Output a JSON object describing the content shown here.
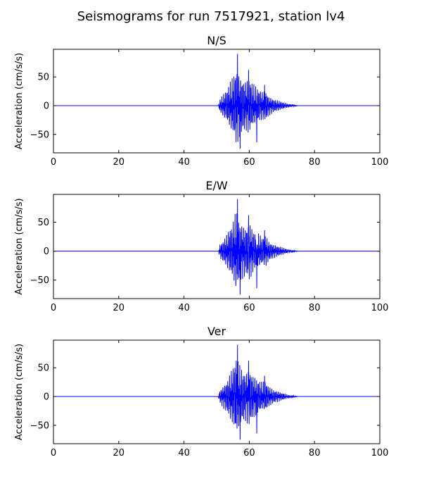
{
  "title": "Seismograms for run 7517921, station lv4",
  "chart_data": [
    {
      "type": "line",
      "title": "N/S",
      "xlabel": "",
      "ylabel": "Acceleration (cm/s/s)",
      "xlim": [
        0,
        100
      ],
      "ylim": [
        -82,
        98
      ],
      "xticks": [
        0,
        20,
        40,
        60,
        80,
        100
      ],
      "yticks": [
        -50,
        0,
        50
      ],
      "grid": false,
      "color": "#0000ff",
      "envelope": [
        [
          0,
          0
        ],
        [
          50.5,
          0
        ],
        [
          51,
          12
        ],
        [
          52,
          20
        ],
        [
          53,
          28
        ],
        [
          54,
          40
        ],
        [
          55,
          52
        ],
        [
          56,
          72
        ],
        [
          57,
          56
        ],
        [
          58,
          48
        ],
        [
          59,
          44
        ],
        [
          60,
          52
        ],
        [
          61,
          40
        ],
        [
          62,
          34
        ],
        [
          63,
          30
        ],
        [
          64,
          25
        ],
        [
          65,
          28
        ],
        [
          66,
          18
        ],
        [
          67,
          14
        ],
        [
          68,
          11
        ],
        [
          69,
          9
        ],
        [
          70,
          7
        ],
        [
          71,
          5
        ],
        [
          72,
          3
        ],
        [
          73,
          2
        ],
        [
          74,
          1
        ],
        [
          75,
          0
        ],
        [
          100,
          0
        ]
      ],
      "peaks": [
        [
          56.4,
          90
        ],
        [
          57.2,
          -75
        ],
        [
          59.8,
          62
        ],
        [
          62.3,
          -64
        ],
        [
          64.7,
          36
        ]
      ]
    },
    {
      "type": "line",
      "title": "E/W",
      "xlabel": "",
      "ylabel": "Acceleration (cm/s/s)",
      "xlim": [
        0,
        100
      ],
      "ylim": [
        -82,
        98
      ],
      "xticks": [
        0,
        20,
        40,
        60,
        80,
        100
      ],
      "yticks": [
        -50,
        0,
        50
      ],
      "grid": false,
      "color": "#0000ff",
      "envelope": [
        [
          0,
          0
        ],
        [
          50.5,
          0
        ],
        [
          51,
          12
        ],
        [
          52,
          20
        ],
        [
          53,
          28
        ],
        [
          54,
          40
        ],
        [
          55,
          52
        ],
        [
          56,
          72
        ],
        [
          57,
          56
        ],
        [
          58,
          48
        ],
        [
          59,
          44
        ],
        [
          60,
          52
        ],
        [
          61,
          40
        ],
        [
          62,
          34
        ],
        [
          63,
          30
        ],
        [
          64,
          25
        ],
        [
          65,
          28
        ],
        [
          66,
          18
        ],
        [
          67,
          14
        ],
        [
          68,
          11
        ],
        [
          69,
          9
        ],
        [
          70,
          7
        ],
        [
          71,
          5
        ],
        [
          72,
          3
        ],
        [
          73,
          2
        ],
        [
          74,
          1
        ],
        [
          75,
          0
        ],
        [
          100,
          0
        ]
      ],
      "peaks": [
        [
          56.4,
          90
        ],
        [
          57.2,
          -75
        ],
        [
          59.8,
          62
        ],
        [
          62.3,
          -64
        ],
        [
          64.7,
          36
        ]
      ]
    },
    {
      "type": "line",
      "title": "Ver",
      "xlabel": "",
      "ylabel": "Acceleration (cm/s/s)",
      "xlim": [
        0,
        100
      ],
      "ylim": [
        -82,
        98
      ],
      "xticks": [
        0,
        20,
        40,
        60,
        80,
        100
      ],
      "yticks": [
        -50,
        0,
        50
      ],
      "grid": false,
      "color": "#0000ff",
      "envelope": [
        [
          0,
          0
        ],
        [
          50.5,
          0
        ],
        [
          51,
          12
        ],
        [
          52,
          20
        ],
        [
          53,
          28
        ],
        [
          54,
          40
        ],
        [
          55,
          52
        ],
        [
          56,
          72
        ],
        [
          57,
          56
        ],
        [
          58,
          48
        ],
        [
          59,
          44
        ],
        [
          60,
          52
        ],
        [
          61,
          40
        ],
        [
          62,
          34
        ],
        [
          63,
          30
        ],
        [
          64,
          25
        ],
        [
          65,
          28
        ],
        [
          66,
          18
        ],
        [
          67,
          14
        ],
        [
          68,
          11
        ],
        [
          69,
          9
        ],
        [
          70,
          7
        ],
        [
          71,
          5
        ],
        [
          72,
          3
        ],
        [
          73,
          2
        ],
        [
          74,
          1
        ],
        [
          75,
          0
        ],
        [
          100,
          0
        ]
      ],
      "peaks": [
        [
          56.4,
          90
        ],
        [
          57.2,
          -75
        ],
        [
          59.8,
          62
        ],
        [
          62.3,
          -64
        ],
        [
          64.7,
          36
        ]
      ]
    }
  ]
}
